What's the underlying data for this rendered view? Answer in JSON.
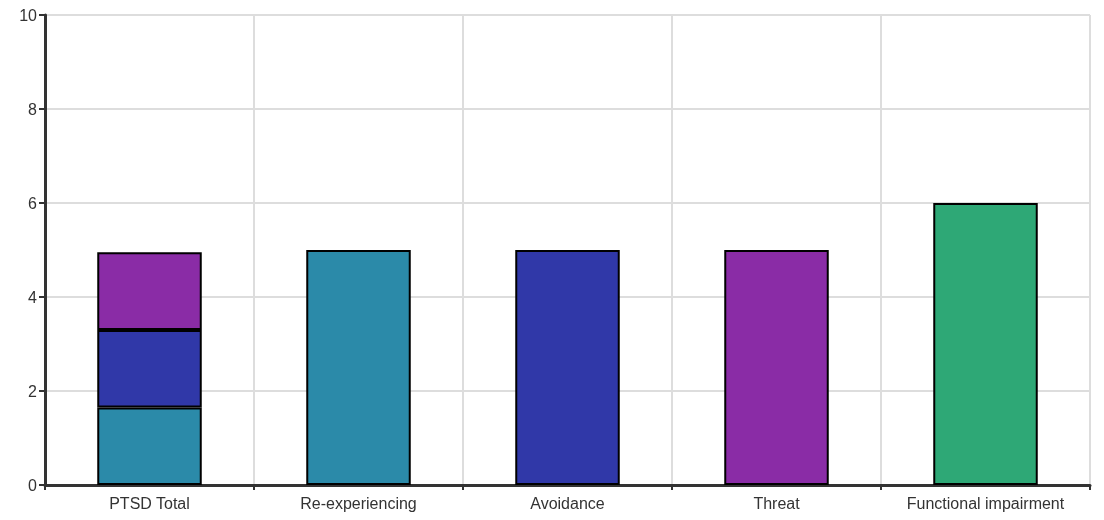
{
  "chart_data": {
    "type": "bar",
    "stacked": true,
    "categories": [
      "PTSD Total",
      "Re-experiencing",
      "Avoidance",
      "Threat",
      "Functional impairment"
    ],
    "series": [
      {
        "color": "#2b8aa9",
        "values": [
          1.65,
          5,
          null,
          null,
          null
        ]
      },
      {
        "color": "#3038a8",
        "values": [
          1.65,
          null,
          5,
          null,
          null
        ]
      },
      {
        "color": "#8a2ca6",
        "values": [
          1.65,
          null,
          null,
          5,
          null
        ]
      },
      {
        "color": "#2ea876",
        "values": [
          null,
          null,
          null,
          null,
          6
        ]
      }
    ],
    "ylim": [
      0,
      10
    ],
    "yticks": [
      0,
      2,
      4,
      6,
      8,
      10
    ],
    "grid": true
  }
}
